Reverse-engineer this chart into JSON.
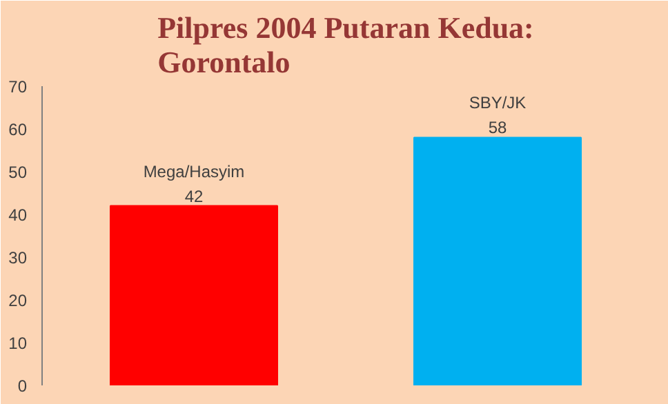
{
  "chart_data": {
    "type": "bar",
    "title": "Pilpres 2004 Putaran Kedua:\nGorontalo",
    "categories": [
      "Mega/Hasyim",
      "SBY/JK"
    ],
    "values": [
      42,
      58
    ],
    "colors": [
      "#ff0000",
      "#00b0f0"
    ],
    "ylim": [
      0,
      70
    ],
    "yticks": [
      0,
      10,
      20,
      30,
      40,
      50,
      60,
      70
    ],
    "data_labels": true,
    "grid": false
  }
}
